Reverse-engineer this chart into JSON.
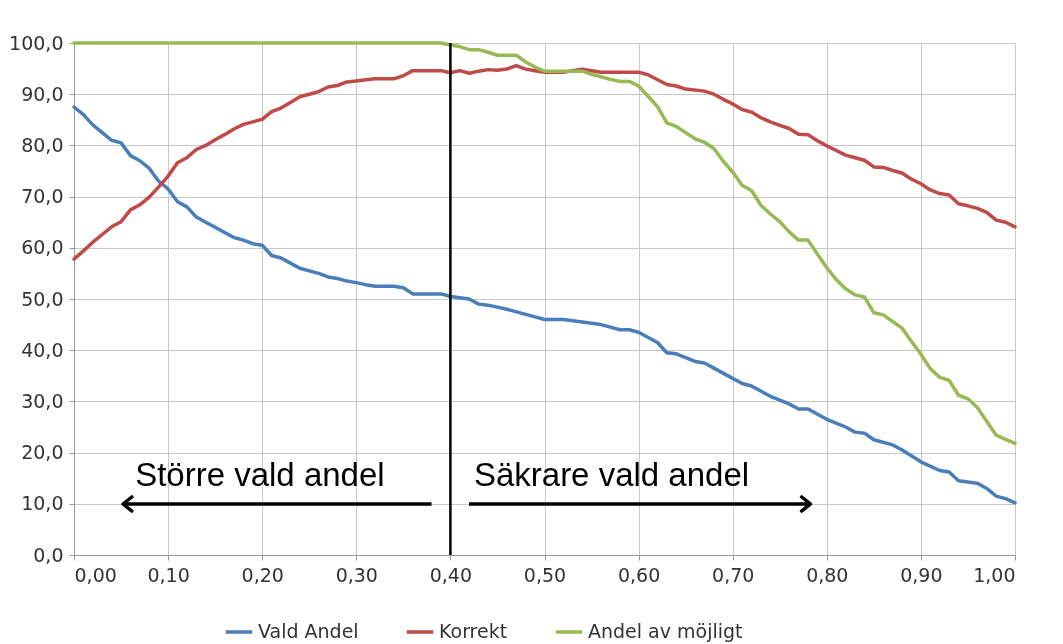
{
  "chart_data": {
    "type": "line",
    "xlim": [
      0,
      1
    ],
    "ylim": [
      0,
      100
    ],
    "xticks": [
      {
        "value": 0,
        "label": "0,00"
      },
      {
        "value": 0.1,
        "label": "0,10"
      },
      {
        "value": 0.2,
        "label": "0,20"
      },
      {
        "value": 0.3,
        "label": "0,30"
      },
      {
        "value": 0.4,
        "label": "0,40"
      },
      {
        "value": 0.5,
        "label": "0,50"
      },
      {
        "value": 0.6,
        "label": "0,60"
      },
      {
        "value": 0.7,
        "label": "0,70"
      },
      {
        "value": 0.8,
        "label": "0,80"
      },
      {
        "value": 0.9,
        "label": "0,90"
      },
      {
        "value": 1,
        "label": "1,00"
      }
    ],
    "yticks": [
      {
        "value": 0,
        "label": "0,0"
      },
      {
        "value": 10,
        "label": "10,0"
      },
      {
        "value": 20,
        "label": "20,0"
      },
      {
        "value": 30,
        "label": "30,0"
      },
      {
        "value": 40,
        "label": "40,0"
      },
      {
        "value": 50,
        "label": "50,0"
      },
      {
        "value": 60,
        "label": "60,0"
      },
      {
        "value": 70,
        "label": "70,0"
      },
      {
        "value": 80,
        "label": "80,0"
      },
      {
        "value": 90,
        "label": "90,0"
      },
      {
        "value": 100,
        "label": "100,0"
      }
    ],
    "grid": true,
    "legend": "bottom",
    "marker": "none",
    "line_style": "solid",
    "ref_lines": [
      {
        "axis": "x",
        "value": 0.4,
        "label": null,
        "color": "#000000"
      }
    ],
    "annotations": [
      "Större vald andel",
      "Säkrare vald andel"
    ],
    "series": [
      {
        "name": "Vald Andel",
        "color": "#4a7ebb",
        "x": [
          0,
          0.01,
          0.02,
          0.03,
          0.04,
          0.05,
          0.06,
          0.07,
          0.08,
          0.09,
          0.1,
          0.11,
          0.12,
          0.13,
          0.14,
          0.15,
          0.16,
          0.17,
          0.18,
          0.19,
          0.2,
          0.21,
          0.22,
          0.23,
          0.24,
          0.25,
          0.26,
          0.27,
          0.28,
          0.29,
          0.3,
          0.31,
          0.32,
          0.33,
          0.34,
          0.35,
          0.36,
          0.37,
          0.38,
          0.39,
          0.4,
          0.42,
          0.43,
          0.44,
          0.46,
          0.48,
          0.49,
          0.5,
          0.52,
          0.54,
          0.56,
          0.57,
          0.58,
          0.59,
          0.6,
          0.62,
          0.63,
          0.64,
          0.66,
          0.67,
          0.68,
          0.7,
          0.71,
          0.72,
          0.74,
          0.76,
          0.77,
          0.78,
          0.8,
          0.82,
          0.83,
          0.84,
          0.85,
          0.87,
          0.88,
          0.9,
          0.92,
          0.93,
          0.94,
          0.96,
          0.97,
          0.98,
          0.99,
          1
        ],
        "values": [
          87.5,
          86,
          84,
          82.5,
          81,
          80.5,
          78,
          77,
          75.5,
          73,
          71.5,
          69,
          68,
          66,
          65,
          64,
          63,
          62,
          61.5,
          60.8,
          60.5,
          58.5,
          58,
          57,
          56,
          55.5,
          55,
          54.3,
          54,
          53.5,
          53.2,
          52.8,
          52.5,
          52.5,
          52.5,
          52.2,
          51,
          51,
          51,
          51,
          50.5,
          50,
          49,
          48.8,
          48,
          47,
          46.5,
          46,
          46,
          45.5,
          45,
          44.5,
          44,
          44,
          43.5,
          41.5,
          39.5,
          39.3,
          37.8,
          37.5,
          36.5,
          34.5,
          33.5,
          33,
          31,
          29.5,
          28.5,
          28.5,
          26.5,
          25,
          24,
          23.8,
          22.5,
          21.5,
          20.5,
          18.2,
          16.5,
          16.2,
          14.5,
          14,
          13,
          11.5,
          11,
          10.2
        ]
      },
      {
        "name": "Korrekt",
        "color": "#be4b48",
        "x": [
          0,
          0.01,
          0.02,
          0.03,
          0.04,
          0.05,
          0.06,
          0.07,
          0.08,
          0.09,
          0.1,
          0.11,
          0.12,
          0.13,
          0.14,
          0.15,
          0.16,
          0.17,
          0.18,
          0.19,
          0.2,
          0.21,
          0.22,
          0.23,
          0.24,
          0.25,
          0.26,
          0.27,
          0.28,
          0.29,
          0.3,
          0.31,
          0.32,
          0.34,
          0.35,
          0.36,
          0.39,
          0.4,
          0.41,
          0.42,
          0.43,
          0.44,
          0.45,
          0.46,
          0.47,
          0.48,
          0.49,
          0.5,
          0.52,
          0.53,
          0.54,
          0.55,
          0.56,
          0.6,
          0.61,
          0.63,
          0.64,
          0.65,
          0.67,
          0.68,
          0.69,
          0.7,
          0.71,
          0.72,
          0.73,
          0.74,
          0.75,
          0.76,
          0.77,
          0.78,
          0.79,
          0.8,
          0.81,
          0.82,
          0.83,
          0.84,
          0.85,
          0.86,
          0.87,
          0.88,
          0.89,
          0.9,
          0.91,
          0.92,
          0.93,
          0.94,
          0.95,
          0.96,
          0.97,
          0.98,
          0.99,
          1
        ],
        "values": [
          57.8,
          59.4,
          61.1,
          62.6,
          64.1,
          65.1,
          67.4,
          68.4,
          69.9,
          71.9,
          74,
          76.6,
          77.6,
          79.2,
          80,
          81.1,
          82.1,
          83.2,
          84.1,
          84.6,
          85.1,
          86.6,
          87.3,
          88.4,
          89.5,
          90,
          90.5,
          91.4,
          91.7,
          92.4,
          92.6,
          92.8,
          93,
          93,
          93.6,
          94.6,
          94.6,
          94.2,
          94.6,
          94.1,
          94.5,
          94.8,
          94.7,
          94.9,
          95.6,
          94.9,
          94.6,
          94.3,
          94.3,
          94.6,
          94.9,
          94.6,
          94.3,
          94.3,
          93.8,
          91.9,
          91.6,
          91,
          90.6,
          90,
          89,
          88.1,
          87,
          86.5,
          85.4,
          84.6,
          83.9,
          83.3,
          82.2,
          82.1,
          80.9,
          79.9,
          79,
          78.1,
          77.6,
          77.1,
          75.8,
          75.7,
          75.1,
          74.6,
          73.4,
          72.5,
          71.3,
          70.6,
          70.3,
          68.6,
          68.2,
          67.7,
          66.9,
          65.4,
          65,
          64.1
        ]
      },
      {
        "name": "Andel av möjligt",
        "color": "#98b954",
        "x": [
          0,
          0.1,
          0.2,
          0.3,
          0.39,
          0.4,
          0.41,
          0.42,
          0.43,
          0.44,
          0.45,
          0.46,
          0.47,
          0.48,
          0.49,
          0.5,
          0.51,
          0.53,
          0.54,
          0.55,
          0.56,
          0.57,
          0.58,
          0.59,
          0.6,
          0.61,
          0.62,
          0.63,
          0.64,
          0.65,
          0.66,
          0.67,
          0.68,
          0.69,
          0.7,
          0.71,
          0.72,
          0.73,
          0.74,
          0.75,
          0.76,
          0.77,
          0.78,
          0.79,
          0.8,
          0.81,
          0.82,
          0.83,
          0.84,
          0.85,
          0.86,
          0.87,
          0.88,
          0.89,
          0.9,
          0.91,
          0.92,
          0.93,
          0.94,
          0.95,
          0.96,
          0.97,
          0.98,
          0.99,
          1
        ],
        "values": [
          100,
          100,
          100,
          100,
          100,
          99.6,
          99.3,
          98.7,
          98.7,
          98.2,
          97.6,
          97.6,
          97.6,
          96.3,
          95.3,
          94.5,
          94.5,
          94.5,
          94.5,
          93.9,
          93.4,
          92.9,
          92.5,
          92.5,
          91.6,
          89.6,
          87.6,
          84.4,
          83.7,
          82.5,
          81.3,
          80.6,
          79.4,
          76.9,
          74.8,
          72.2,
          71.2,
          68.3,
          66.6,
          65.1,
          63.1,
          61.5,
          61.5,
          58.8,
          56.1,
          53.8,
          52,
          50.8,
          50.4,
          47.3,
          46.9,
          45.6,
          44.3,
          41.7,
          39.2,
          36.4,
          34.7,
          34.1,
          31.2,
          30.5,
          28.8,
          26.1,
          23.4,
          22.6,
          21.8
        ]
      }
    ]
  }
}
